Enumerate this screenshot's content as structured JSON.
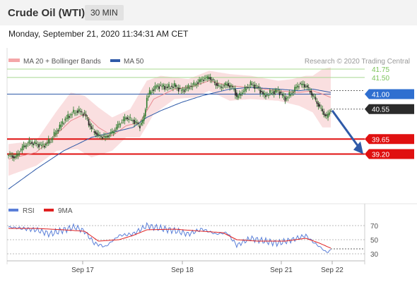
{
  "header": {
    "title": "Crude Oil (WTI)",
    "timeframe": "30 MIN"
  },
  "datetime": "Monday, September 21, 2020 11:34:31 AM CET",
  "legend": {
    "bb_label": "MA 20 + Bollinger Bands",
    "ma50_label": "MA 50",
    "credit": "Research © 2020 Trading Central"
  },
  "rsi_legend": {
    "rsi_label": "RSI",
    "ma9_label": "9MA"
  },
  "colors": {
    "bb_fill": "#f6c5c7",
    "ma20": "#e88a90",
    "ma50": "#2f5aa8",
    "candle": "#2a7a2a",
    "support": "#e01010",
    "resistance_green": "#a8d890",
    "pivot": "#2f5aa8",
    "arrow": "#2f5aa8",
    "rsi": "#5b7fd8",
    "rsi_ma": "#e02020"
  },
  "chart_data": [
    {
      "type": "candlestick",
      "title": "Crude Oil (WTI)",
      "timeframe": "30 MIN",
      "x_ticks": [
        "Sep 17",
        "Sep 18",
        "Sep 21",
        "Sep 22"
      ],
      "ylim": [
        37.9,
        42.3
      ],
      "levels": [
        {
          "value": 41.75,
          "label": "41.75",
          "kind": "resistance"
        },
        {
          "value": 41.5,
          "label": "41.50",
          "kind": "resistance"
        },
        {
          "value": 41.0,
          "label": "41.00",
          "kind": "pivot"
        },
        {
          "value": 40.55,
          "label": "40.55",
          "kind": "last"
        },
        {
          "value": 39.65,
          "label": "39.65",
          "kind": "support"
        },
        {
          "value": 39.2,
          "label": "39.20",
          "kind": "support"
        }
      ],
      "close_anchors": [
        [
          0,
          39.17
        ],
        [
          5,
          39.1
        ],
        [
          10,
          39.4
        ],
        [
          15,
          39.55
        ],
        [
          20,
          39.5
        ],
        [
          25,
          39.45
        ],
        [
          30,
          39.6
        ],
        [
          35,
          39.9
        ],
        [
          40,
          40.2
        ],
        [
          45,
          40.4
        ],
        [
          50,
          40.5
        ],
        [
          55,
          40.4
        ],
        [
          60,
          39.95
        ],
        [
          65,
          39.75
        ],
        [
          70,
          39.7
        ],
        [
          75,
          39.85
        ],
        [
          80,
          40.1
        ],
        [
          85,
          40.3
        ],
        [
          90,
          40.2
        ],
        [
          95,
          40.05
        ],
        [
          98,
          40.3
        ],
        [
          100,
          40.9
        ],
        [
          103,
          41.1
        ],
        [
          108,
          41.25
        ],
        [
          115,
          41.2
        ],
        [
          120,
          41.25
        ],
        [
          125,
          41.1
        ],
        [
          130,
          41.2
        ],
        [
          135,
          41.3
        ],
        [
          140,
          41.45
        ],
        [
          145,
          41.5
        ],
        [
          150,
          41.3
        ],
        [
          153,
          41.2
        ],
        [
          158,
          41.3
        ],
        [
          163,
          41.15
        ],
        [
          165,
          40.9
        ],
        [
          170,
          41.1
        ],
        [
          175,
          41.3
        ],
        [
          180,
          41.2
        ],
        [
          185,
          40.95
        ],
        [
          190,
          41.05
        ],
        [
          195,
          41.1
        ],
        [
          200,
          40.85
        ],
        [
          205,
          41.05
        ],
        [
          210,
          41.3
        ],
        [
          215,
          41.25
        ],
        [
          220,
          40.95
        ],
        [
          225,
          40.6
        ],
        [
          230,
          40.3
        ],
        [
          233,
          40.55
        ]
      ],
      "bb_upper_anchors": [
        [
          0,
          39.5
        ],
        [
          20,
          39.6
        ],
        [
          35,
          40.5
        ],
        [
          45,
          41.05
        ],
        [
          55,
          40.95
        ],
        [
          65,
          40.6
        ],
        [
          75,
          40.3
        ],
        [
          88,
          40.55
        ],
        [
          100,
          41.4
        ],
        [
          110,
          41.55
        ],
        [
          130,
          41.45
        ],
        [
          145,
          41.7
        ],
        [
          160,
          41.6
        ],
        [
          175,
          41.55
        ],
        [
          195,
          41.4
        ],
        [
          205,
          41.45
        ],
        [
          215,
          41.55
        ],
        [
          220,
          41.55
        ],
        [
          227,
          41.75
        ],
        [
          233,
          41.8
        ]
      ],
      "bb_lower_anchors": [
        [
          0,
          38.55
        ],
        [
          20,
          38.85
        ],
        [
          35,
          39.3
        ],
        [
          50,
          39.35
        ],
        [
          60,
          39.1
        ],
        [
          75,
          39.3
        ],
        [
          85,
          39.7
        ],
        [
          95,
          39.7
        ],
        [
          105,
          40.4
        ],
        [
          120,
          40.85
        ],
        [
          135,
          40.9
        ],
        [
          145,
          41.1
        ],
        [
          160,
          40.8
        ],
        [
          175,
          40.85
        ],
        [
          195,
          40.8
        ],
        [
          210,
          40.65
        ],
        [
          220,
          40.45
        ],
        [
          227,
          40.0
        ],
        [
          233,
          40.0
        ]
      ],
      "ma20_anchors": [
        [
          0,
          39.05
        ],
        [
          20,
          39.25
        ],
        [
          35,
          39.8
        ],
        [
          45,
          40.2
        ],
        [
          55,
          40.4
        ],
        [
          65,
          40.0
        ],
        [
          75,
          39.75
        ],
        [
          85,
          40.05
        ],
        [
          95,
          40.15
        ],
        [
          105,
          40.85
        ],
        [
          120,
          41.15
        ],
        [
          135,
          41.25
        ],
        [
          145,
          41.4
        ],
        [
          160,
          41.25
        ],
        [
          175,
          41.2
        ],
        [
          195,
          41.1
        ],
        [
          210,
          41.05
        ],
        [
          220,
          41.1
        ],
        [
          227,
          41.0
        ],
        [
          233,
          40.9
        ]
      ],
      "ma50_anchors": [
        [
          0,
          38.15
        ],
        [
          20,
          38.75
        ],
        [
          40,
          39.3
        ],
        [
          60,
          39.7
        ],
        [
          75,
          39.85
        ],
        [
          90,
          40.0
        ],
        [
          100,
          40.3
        ],
        [
          110,
          40.5
        ],
        [
          125,
          40.75
        ],
        [
          140,
          40.95
        ],
        [
          160,
          41.15
        ],
        [
          175,
          41.2
        ],
        [
          195,
          41.15
        ],
        [
          210,
          41.1
        ],
        [
          220,
          41.15
        ],
        [
          233,
          41.05
        ]
      ]
    },
    {
      "type": "line",
      "title": "RSI",
      "series": [
        {
          "name": "RSI"
        },
        {
          "name": "9MA"
        }
      ],
      "ylim": [
        20,
        80
      ],
      "y_ticks": [
        70,
        50,
        30
      ],
      "rsi_anchors": [
        [
          0,
          68
        ],
        [
          10,
          66
        ],
        [
          20,
          64
        ],
        [
          30,
          58
        ],
        [
          40,
          64
        ],
        [
          48,
          68
        ],
        [
          55,
          62
        ],
        [
          62,
          45
        ],
        [
          70,
          40
        ],
        [
          80,
          56
        ],
        [
          90,
          58
        ],
        [
          100,
          70
        ],
        [
          110,
          66
        ],
        [
          120,
          63
        ],
        [
          130,
          58
        ],
        [
          140,
          65
        ],
        [
          150,
          58
        ],
        [
          158,
          60
        ],
        [
          165,
          42
        ],
        [
          175,
          52
        ],
        [
          185,
          48
        ],
        [
          195,
          45
        ],
        [
          205,
          50
        ],
        [
          215,
          56
        ],
        [
          220,
          47
        ],
        [
          225,
          40
        ],
        [
          230,
          32
        ],
        [
          233,
          35
        ]
      ],
      "rsi_ma_anchors": [
        [
          0,
          66
        ],
        [
          20,
          66
        ],
        [
          40,
          64
        ],
        [
          55,
          62
        ],
        [
          65,
          48
        ],
        [
          80,
          50
        ],
        [
          90,
          56
        ],
        [
          100,
          64
        ],
        [
          120,
          65
        ],
        [
          140,
          62
        ],
        [
          155,
          60
        ],
        [
          165,
          50
        ],
        [
          180,
          48
        ],
        [
          200,
          48
        ],
        [
          215,
          52
        ],
        [
          225,
          45
        ],
        [
          233,
          38
        ]
      ]
    }
  ]
}
